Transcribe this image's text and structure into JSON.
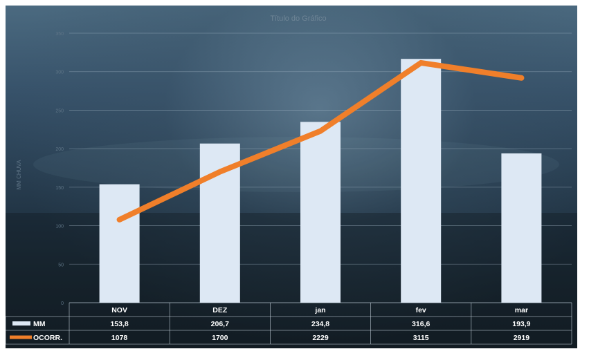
{
  "chart_data": {
    "type": "bar",
    "title": "Título do Gráfico",
    "categories": [
      "NOV",
      "DEZ",
      "jan",
      "fev",
      "mar"
    ],
    "series": [
      {
        "name": "MM",
        "type": "bar",
        "values": [
          153.8,
          206.7,
          234.8,
          316.6,
          193.9
        ],
        "labels": [
          "153,8",
          "206,7",
          "234,8",
          "316,6",
          "193,9"
        ],
        "color": "#dde8f4"
      },
      {
        "name": "OCORR.",
        "type": "line",
        "values": [
          1078,
          1700,
          2229,
          3115,
          2919
        ],
        "labels": [
          "1078",
          "1700",
          "2229",
          "3115",
          "2919"
        ],
        "color": "#f07f2a"
      }
    ],
    "ylabel": "MM CHUVA",
    "ylim": [
      0,
      350
    ],
    "y2lim": [
      0,
      3500
    ],
    "y_ticks": [
      "0",
      "50",
      "100",
      "150",
      "200",
      "250",
      "300",
      "350"
    ],
    "grid": true,
    "legend": "data-table"
  }
}
